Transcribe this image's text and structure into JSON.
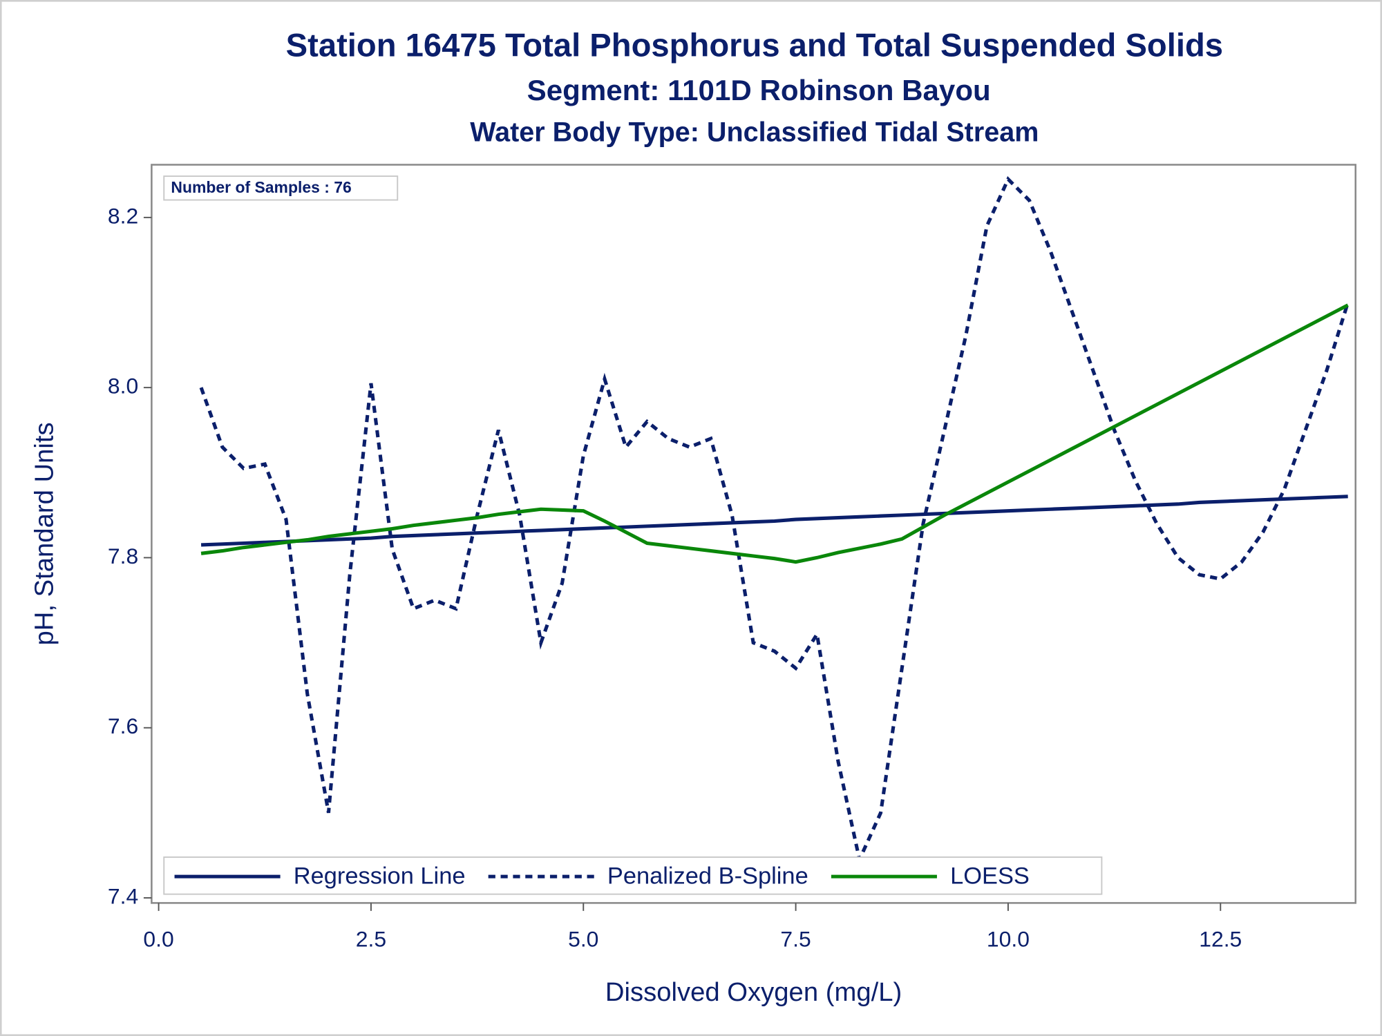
{
  "chart_data": {
    "type": "line",
    "title": "Station 16475  Total Phosphorus and Total Suspended Solids",
    "subtitle": "Segment: 1101D  Robinson Bayou",
    "subtitle2": "Water Body Type: Unclassified Tidal Stream",
    "annotation": "Number of Samples : 76",
    "x_label": "Dissolved Oxygen (mg/L)",
    "y_label": "pH, Standard Units",
    "x": [
      0.5,
      0.75,
      1,
      1.25,
      1.5,
      1.75,
      2,
      2.25,
      2.5,
      2.75,
      3,
      3.25,
      3.5,
      3.75,
      4,
      4.25,
      4.5,
      4.75,
      5,
      5.25,
      5.5,
      5.75,
      6,
      6.25,
      6.5,
      6.75,
      7,
      7.25,
      7.5,
      7.75,
      8,
      8.25,
      8.5,
      8.75,
      9,
      9.25,
      9.5,
      9.75,
      10,
      10.25,
      10.5,
      10.75,
      11,
      11.25,
      11.5,
      11.75,
      12,
      12.25,
      12.5,
      12.75,
      13,
      13.25,
      13.5,
      13.75,
      14
    ],
    "series": [
      {
        "name": "Regression Line",
        "color": "#0b1f6b",
        "line_style": "solid",
        "values": [
          7.815,
          7.816,
          7.817,
          7.818,
          7.819,
          7.82,
          7.821,
          7.822,
          7.823,
          7.825,
          7.826,
          7.827,
          7.828,
          7.829,
          7.83,
          7.831,
          7.832,
          7.833,
          7.834,
          7.835,
          7.836,
          7.837,
          7.838,
          7.839,
          7.84,
          7.841,
          7.842,
          7.843,
          7.845,
          7.846,
          7.847,
          7.848,
          7.849,
          7.85,
          7.851,
          7.852,
          7.853,
          7.854,
          7.855,
          7.856,
          7.857,
          7.858,
          7.859,
          7.86,
          7.861,
          7.862,
          7.863,
          7.865,
          7.866,
          7.867,
          7.868,
          7.869,
          7.87,
          7.871,
          7.872
        ]
      },
      {
        "name": "Penalized B-Spline",
        "color": "#0b1f6b",
        "line_style": "dash",
        "values": [
          8.0,
          7.93,
          7.905,
          7.91,
          7.845,
          7.64,
          7.5,
          7.78,
          8.005,
          7.81,
          7.74,
          7.75,
          7.74,
          7.85,
          7.95,
          7.85,
          7.7,
          7.77,
          7.92,
          8.01,
          7.93,
          7.96,
          7.94,
          7.93,
          7.94,
          7.85,
          7.7,
          7.69,
          7.67,
          7.71,
          7.56,
          7.445,
          7.5,
          7.67,
          7.84,
          7.95,
          8.06,
          8.19,
          8.245,
          8.22,
          8.16,
          8.09,
          8.02,
          7.95,
          7.89,
          7.84,
          7.8,
          7.78,
          7.775,
          7.795,
          7.83,
          7.88,
          7.95,
          8.02,
          8.1
        ]
      },
      {
        "name": "LOESS",
        "color": "#0a870a",
        "line_style": "solid",
        "values": [
          7.805,
          7.808,
          7.812,
          7.815,
          7.818,
          7.821,
          7.825,
          7.828,
          7.831,
          7.834,
          7.838,
          7.841,
          7.844,
          7.847,
          7.851,
          7.854,
          7.857,
          7.856,
          7.855,
          7.843,
          7.83,
          7.817,
          7.814,
          7.811,
          7.808,
          7.805,
          7.802,
          7.799,
          7.795,
          7.8,
          7.806,
          7.811,
          7.816,
          7.822,
          7.836,
          7.85,
          7.863,
          7.876,
          7.889,
          7.902,
          7.915,
          7.928,
          7.941,
          7.954,
          7.967,
          7.98,
          7.993,
          8.006,
          8.019,
          8.032,
          8.045,
          8.058,
          8.071,
          8.084,
          8.097
        ]
      }
    ],
    "xlim": [
      -0.083,
      14.09
    ],
    "ylim": [
      7.394,
      8.262
    ],
    "xticks": [
      {
        "value": 0,
        "label": "0.0"
      },
      2.5,
      {
        "value": 5,
        "label": "5.0"
      },
      7.5,
      {
        "value": 10,
        "label": "10.0"
      },
      12.5
    ],
    "yticks": [
      7.4,
      7.6,
      7.8,
      {
        "value": 8,
        "label": "8.0"
      },
      8.2
    ],
    "legend": "bottom-left"
  }
}
